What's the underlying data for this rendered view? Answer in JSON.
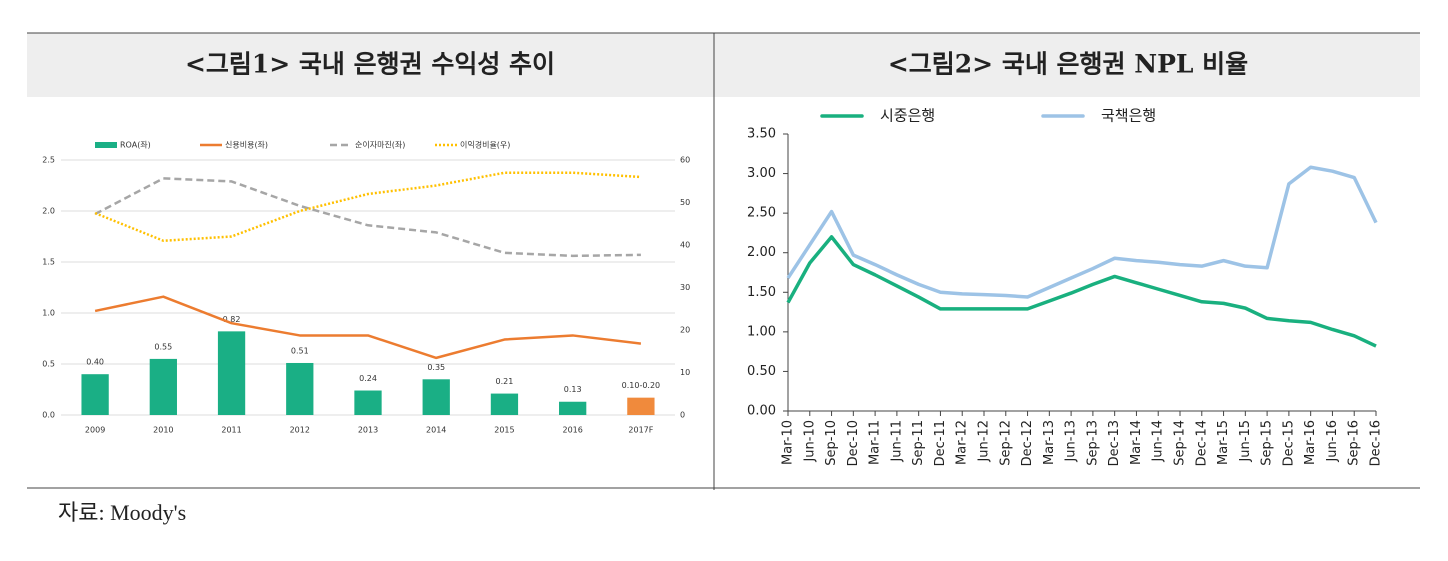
{
  "chart_data": [
    {
      "type": "combo",
      "title": "<그림1> 국내 은행권 수익성 추이",
      "categories": [
        "2009",
        "2010",
        "2011",
        "2012",
        "2013",
        "2014",
        "2015",
        "2016",
        "2017F"
      ],
      "series": [
        {
          "name": "ROA(좌)",
          "type": "bar",
          "color": "#1aaf85",
          "colors": [
            "#1aaf85",
            "#1aaf85",
            "#1aaf85",
            "#1aaf85",
            "#1aaf85",
            "#1aaf85",
            "#1aaf85",
            "#1aaf85",
            "#f08a3c"
          ],
          "values": [
            0.4,
            0.55,
            0.82,
            0.51,
            0.24,
            0.35,
            0.21,
            0.13,
            0.17
          ],
          "value_labels": [
            "0.40",
            "0.55",
            "0.82",
            "0.51",
            "0.24",
            "0.35",
            "0.21",
            "0.13",
            "0.10-0.20"
          ]
        },
        {
          "name": "신용비용(좌)",
          "type": "line",
          "style": "solid",
          "color": "#ec7c30",
          "values": [
            1.02,
            1.16,
            0.9,
            0.78,
            0.78,
            0.56,
            0.74,
            0.78,
            0.7
          ]
        },
        {
          "name": "순이자마진(좌)",
          "type": "line",
          "style": "dashed",
          "color": "#a6a6a6",
          "values": [
            1.97,
            2.32,
            2.29,
            2.05,
            1.86,
            1.79,
            1.59,
            1.56,
            1.57
          ]
        },
        {
          "name": "이익경비율(우)",
          "type": "line",
          "style": "dotted",
          "color": "#ffc000",
          "axis": "y2",
          "values": [
            47.5,
            41,
            42,
            48,
            52,
            54,
            57,
            57,
            56
          ]
        }
      ],
      "ylim": [
        0,
        2.5
      ],
      "yticks": [
        {
          "value": 0,
          "label": "0.0"
        },
        0.5,
        {
          "value": 1,
          "label": "1.0"
        },
        1.5,
        {
          "value": 2,
          "label": "2.0"
        },
        2.5
      ],
      "y2lim": [
        0,
        60
      ],
      "y2ticks": [
        0,
        10,
        20,
        30,
        40,
        50,
        60
      ],
      "grid": true
    },
    {
      "type": "line",
      "title": "<그림2> 국내 은행권 NPL 비율",
      "categories": [
        "Mar-10",
        "Jun-10",
        "Sep-10",
        "Dec-10",
        "Mar-11",
        "Jun-11",
        "Sep-11",
        "Dec-11",
        "Mar-12",
        "Jun-12",
        "Sep-12",
        "Dec-12",
        "Mar-13",
        "Jun-13",
        "Sep-13",
        "Dec-13",
        "Mar-14",
        "Jun-14",
        "Sep-14",
        "Dec-14",
        "Mar-15",
        "Jun-15",
        "Sep-15",
        "Dec-15",
        "Mar-16",
        "Jun-16",
        "Sep-16",
        "Dec-16"
      ],
      "series": [
        {
          "name": "시중은행",
          "color": "#19b07f",
          "style": "solid",
          "values": [
            1.37,
            1.87,
            2.2,
            1.85,
            1.72,
            1.58,
            1.44,
            1.29,
            1.29,
            1.29,
            1.29,
            1.29,
            1.39,
            1.49,
            1.6,
            1.7,
            1.62,
            1.54,
            1.46,
            1.38,
            1.36,
            1.3,
            1.17,
            1.14,
            1.12,
            1.03,
            0.95,
            0.82
          ]
        },
        {
          "name": "국책은행",
          "color": "#9dc3e6",
          "style": "solid",
          "values": [
            1.68,
            2.1,
            2.52,
            1.97,
            1.85,
            1.72,
            1.6,
            1.5,
            1.48,
            1.47,
            1.46,
            1.44,
            1.56,
            1.68,
            1.8,
            1.93,
            1.9,
            1.88,
            1.85,
            1.83,
            1.9,
            1.83,
            1.81,
            2.87,
            3.08,
            3.03,
            2.95,
            2.38
          ]
        }
      ],
      "ylim": [
        0,
        3.5
      ],
      "yticks": [
        {
          "value": 0,
          "label": "0.00"
        },
        {
          "value": 0.5,
          "label": "0.50"
        },
        {
          "value": 1,
          "label": "1.00"
        },
        {
          "value": 1.5,
          "label": "1.50"
        },
        {
          "value": 2,
          "label": "2.00"
        },
        {
          "value": 2.5,
          "label": "2.50"
        },
        {
          "value": 3,
          "label": "3.00"
        },
        {
          "value": 3.5,
          "label": "3.50"
        }
      ],
      "grid": false
    }
  ],
  "source": "자료: Moody's"
}
